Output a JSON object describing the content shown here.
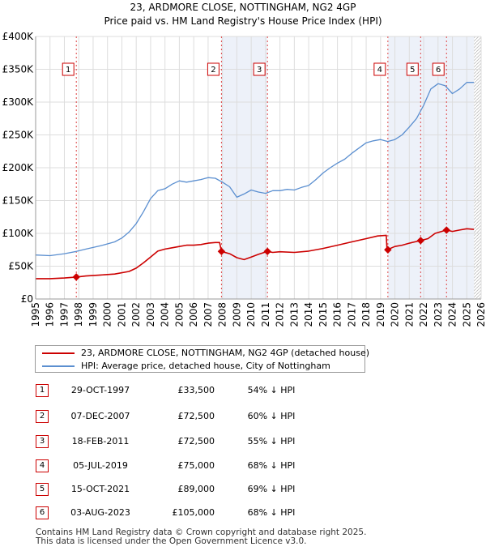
{
  "chart_data": {
    "type": "line",
    "title": "23, ARDMORE CLOSE, NOTTINGHAM, NG2 4GP",
    "subtitle": "Price paid vs. HM Land Registry's House Price Index (HPI)",
    "xlabel": "",
    "ylabel": "",
    "xlim": [
      1995,
      2026
    ],
    "ylim": [
      0,
      400000
    ],
    "y_ticks": [
      {
        "value": 0,
        "label": "£0"
      },
      {
        "value": 50000,
        "label": "£50K"
      },
      {
        "value": 100000,
        "label": "£100K"
      },
      {
        "value": 150000,
        "label": "£150K"
      },
      {
        "value": 200000,
        "label": "£200K"
      },
      {
        "value": 250000,
        "label": "£250K"
      },
      {
        "value": 300000,
        "label": "£300K"
      },
      {
        "value": 350000,
        "label": "£350K"
      },
      {
        "value": 400000,
        "label": "£400K"
      }
    ],
    "x_ticks": [
      "1995",
      "1996",
      "1997",
      "1998",
      "1999",
      "2000",
      "2001",
      "2002",
      "2003",
      "2004",
      "2005",
      "2006",
      "2007",
      "2008",
      "2009",
      "2010",
      "2011",
      "2012",
      "2013",
      "2014",
      "2015",
      "2016",
      "2017",
      "2018",
      "2019",
      "2020",
      "2021",
      "2022",
      "2023",
      "2024",
      "2025",
      "2026"
    ],
    "series": [
      {
        "name": "23, ARDMORE CLOSE, NOTTINGHAM, NG2 4GP (detached house)",
        "color": "#cc0000",
        "points": [
          [
            1995.0,
            31000
          ],
          [
            1996.0,
            31000
          ],
          [
            1997.0,
            32000
          ],
          [
            1997.83,
            33500
          ],
          [
            1998.5,
            35000
          ],
          [
            1999.5,
            36500
          ],
          [
            2000.5,
            38000
          ],
          [
            2001.5,
            42000
          ],
          [
            2002.0,
            47000
          ],
          [
            2002.5,
            55000
          ],
          [
            2003.0,
            64000
          ],
          [
            2003.5,
            73000
          ],
          [
            2004.0,
            76000
          ],
          [
            2004.5,
            78000
          ],
          [
            2005.0,
            80000
          ],
          [
            2005.5,
            82000
          ],
          [
            2006.0,
            82000
          ],
          [
            2006.5,
            83000
          ],
          [
            2007.0,
            85000
          ],
          [
            2007.5,
            86000
          ],
          [
            2007.8,
            86000
          ],
          [
            2007.93,
            72500
          ],
          [
            2008.5,
            69000
          ],
          [
            2009.0,
            63000
          ],
          [
            2009.5,
            60000
          ],
          [
            2010.0,
            64000
          ],
          [
            2010.5,
            68000
          ],
          [
            2011.13,
            72500
          ],
          [
            2011.5,
            71000
          ],
          [
            2012.0,
            72000
          ],
          [
            2013.0,
            71000
          ],
          [
            2014.0,
            73000
          ],
          [
            2015.0,
            77000
          ],
          [
            2016.0,
            82000
          ],
          [
            2017.0,
            87000
          ],
          [
            2018.0,
            92000
          ],
          [
            2018.8,
            96000
          ],
          [
            2019.4,
            97000
          ],
          [
            2019.45,
            75000
          ],
          [
            2020.0,
            80000
          ],
          [
            2020.5,
            82000
          ],
          [
            2021.0,
            85000
          ],
          [
            2021.79,
            89000
          ],
          [
            2022.3,
            92000
          ],
          [
            2022.8,
            100000
          ],
          [
            2023.59,
            105000
          ],
          [
            2024.0,
            103000
          ],
          [
            2024.5,
            105000
          ],
          [
            2025.0,
            107000
          ],
          [
            2025.5,
            106000
          ]
        ]
      },
      {
        "name": "HPI: Average price, detached house, City of Nottingham",
        "color": "#5b8fd0",
        "points": [
          [
            1995.0,
            67000
          ],
          [
            1996.0,
            66000
          ],
          [
            1997.0,
            69000
          ],
          [
            1997.83,
            72500
          ],
          [
            1998.5,
            76000
          ],
          [
            1999.5,
            81000
          ],
          [
            2000.5,
            87000
          ],
          [
            2001.0,
            93000
          ],
          [
            2001.5,
            102000
          ],
          [
            2002.0,
            115000
          ],
          [
            2002.5,
            133000
          ],
          [
            2003.0,
            153000
          ],
          [
            2003.5,
            165000
          ],
          [
            2004.0,
            168000
          ],
          [
            2004.5,
            175000
          ],
          [
            2005.0,
            180000
          ],
          [
            2005.5,
            178000
          ],
          [
            2006.0,
            180000
          ],
          [
            2006.5,
            182000
          ],
          [
            2007.0,
            185000
          ],
          [
            2007.5,
            184000
          ],
          [
            2008.0,
            178000
          ],
          [
            2008.5,
            171000
          ],
          [
            2009.0,
            155000
          ],
          [
            2009.5,
            160000
          ],
          [
            2010.0,
            166000
          ],
          [
            2010.5,
            163000
          ],
          [
            2011.0,
            161000
          ],
          [
            2011.5,
            165000
          ],
          [
            2012.0,
            165000
          ],
          [
            2012.5,
            167000
          ],
          [
            2013.0,
            166000
          ],
          [
            2013.5,
            170000
          ],
          [
            2014.0,
            173000
          ],
          [
            2014.5,
            182000
          ],
          [
            2015.0,
            192000
          ],
          [
            2015.5,
            200000
          ],
          [
            2016.0,
            207000
          ],
          [
            2016.5,
            213000
          ],
          [
            2017.0,
            222000
          ],
          [
            2017.5,
            230000
          ],
          [
            2018.0,
            238000
          ],
          [
            2018.5,
            241000
          ],
          [
            2019.0,
            243000
          ],
          [
            2019.5,
            240000
          ],
          [
            2020.0,
            243000
          ],
          [
            2020.5,
            250000
          ],
          [
            2021.0,
            262000
          ],
          [
            2021.5,
            275000
          ],
          [
            2022.0,
            295000
          ],
          [
            2022.5,
            320000
          ],
          [
            2023.0,
            328000
          ],
          [
            2023.5,
            325000
          ],
          [
            2024.0,
            313000
          ],
          [
            2024.5,
            320000
          ],
          [
            2025.0,
            330000
          ],
          [
            2025.5,
            330000
          ]
        ]
      }
    ],
    "sales": [
      {
        "num": "1",
        "x": 1997.83,
        "y": 33500
      },
      {
        "num": "2",
        "x": 2007.93,
        "y": 72500
      },
      {
        "num": "3",
        "x": 2011.13,
        "y": 72500
      },
      {
        "num": "4",
        "x": 2019.51,
        "y": 75000
      },
      {
        "num": "5",
        "x": 2021.79,
        "y": 89000
      },
      {
        "num": "6",
        "x": 2023.59,
        "y": 105000
      }
    ],
    "forecast_start": 2025.5,
    "grid": true
  },
  "legend": [
    {
      "label": "23, ARDMORE CLOSE, NOTTINGHAM, NG2 4GP (detached house)",
      "color": "#cc0000"
    },
    {
      "label": "HPI: Average price, detached house, City of Nottingham",
      "color": "#5b8fd0"
    }
  ],
  "transactions": [
    {
      "num": "1",
      "date": "29-OCT-1997",
      "price": "£33,500",
      "hpi": "54% ↓ HPI"
    },
    {
      "num": "2",
      "date": "07-DEC-2007",
      "price": "£72,500",
      "hpi": "60% ↓ HPI"
    },
    {
      "num": "3",
      "date": "18-FEB-2011",
      "price": "£72,500",
      "hpi": "55% ↓ HPI"
    },
    {
      "num": "4",
      "date": "05-JUL-2019",
      "price": "£75,000",
      "hpi": "68% ↓ HPI"
    },
    {
      "num": "5",
      "date": "15-OCT-2021",
      "price": "£89,000",
      "hpi": "69% ↓ HPI"
    },
    {
      "num": "6",
      "date": "03-AUG-2023",
      "price": "£105,000",
      "hpi": "68% ↓ HPI"
    }
  ],
  "footer": {
    "line1": "Contains HM Land Registry data © Crown copyright and database right 2025.",
    "line2": "This data is licensed under the Open Government Licence v3.0."
  }
}
